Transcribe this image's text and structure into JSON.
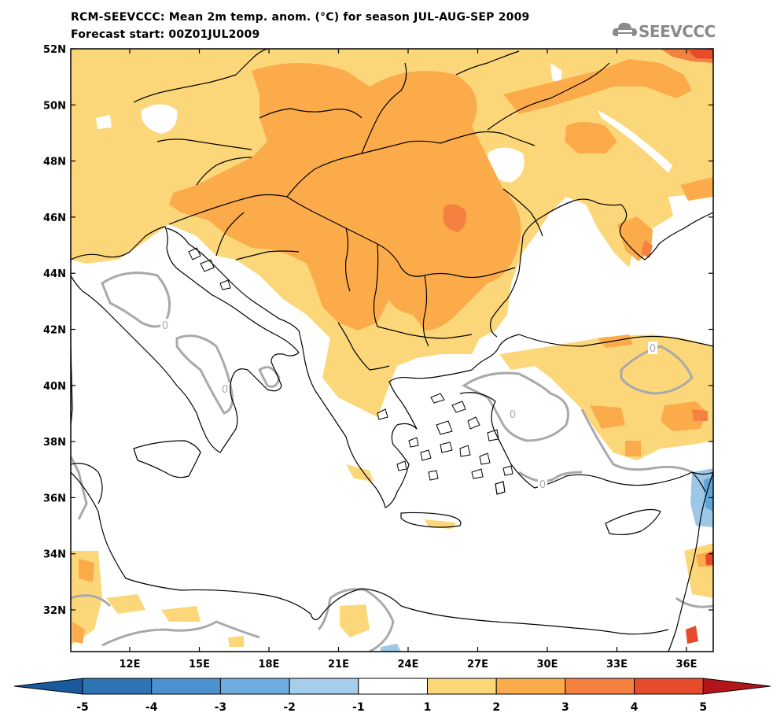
{
  "header": {
    "title": "RCM-SEEVCCC: Mean 2m temp. anom. (°C) for season JUL-AUG-SEP 2009",
    "subtitle": "Forecast start: 00Z01JUL2009"
  },
  "logo": {
    "text": "SEEVCCC",
    "icon": "cloud-icon"
  },
  "map": {
    "lat_labels": [
      "52N",
      "50N",
      "48N",
      "46N",
      "44N",
      "42N",
      "40N",
      "38N",
      "36N",
      "34N",
      "32N"
    ],
    "lon_labels": [
      "12E",
      "15E",
      "18E",
      "21E",
      "24E",
      "27E",
      "30E",
      "33E",
      "36E"
    ],
    "contour_label": "0",
    "colors": {
      "anom_1_2": "#fcd77a",
      "anom_2_3": "#fbab4a",
      "anom_3_4": "#f58140",
      "anom_4_5": "#e64b2b",
      "anom_m1_m2": "#9dc7e6",
      "anom_m2_m3": "#5ea6db",
      "coast": "#000000",
      "contour_zero": "#a9a9a9"
    }
  },
  "colorbar": {
    "ticks": [
      "-5",
      "-4",
      "-3",
      "-2",
      "-1",
      "1",
      "2",
      "3",
      "4",
      "5"
    ],
    "colors": [
      "#1a5a9c",
      "#2e74b5",
      "#4c92d0",
      "#6eaddf",
      "#a6cde9",
      "#ffffff",
      "#fcd77a",
      "#fbab4a",
      "#f58140",
      "#e64b2b",
      "#d12a1d",
      "#b3161a"
    ]
  }
}
